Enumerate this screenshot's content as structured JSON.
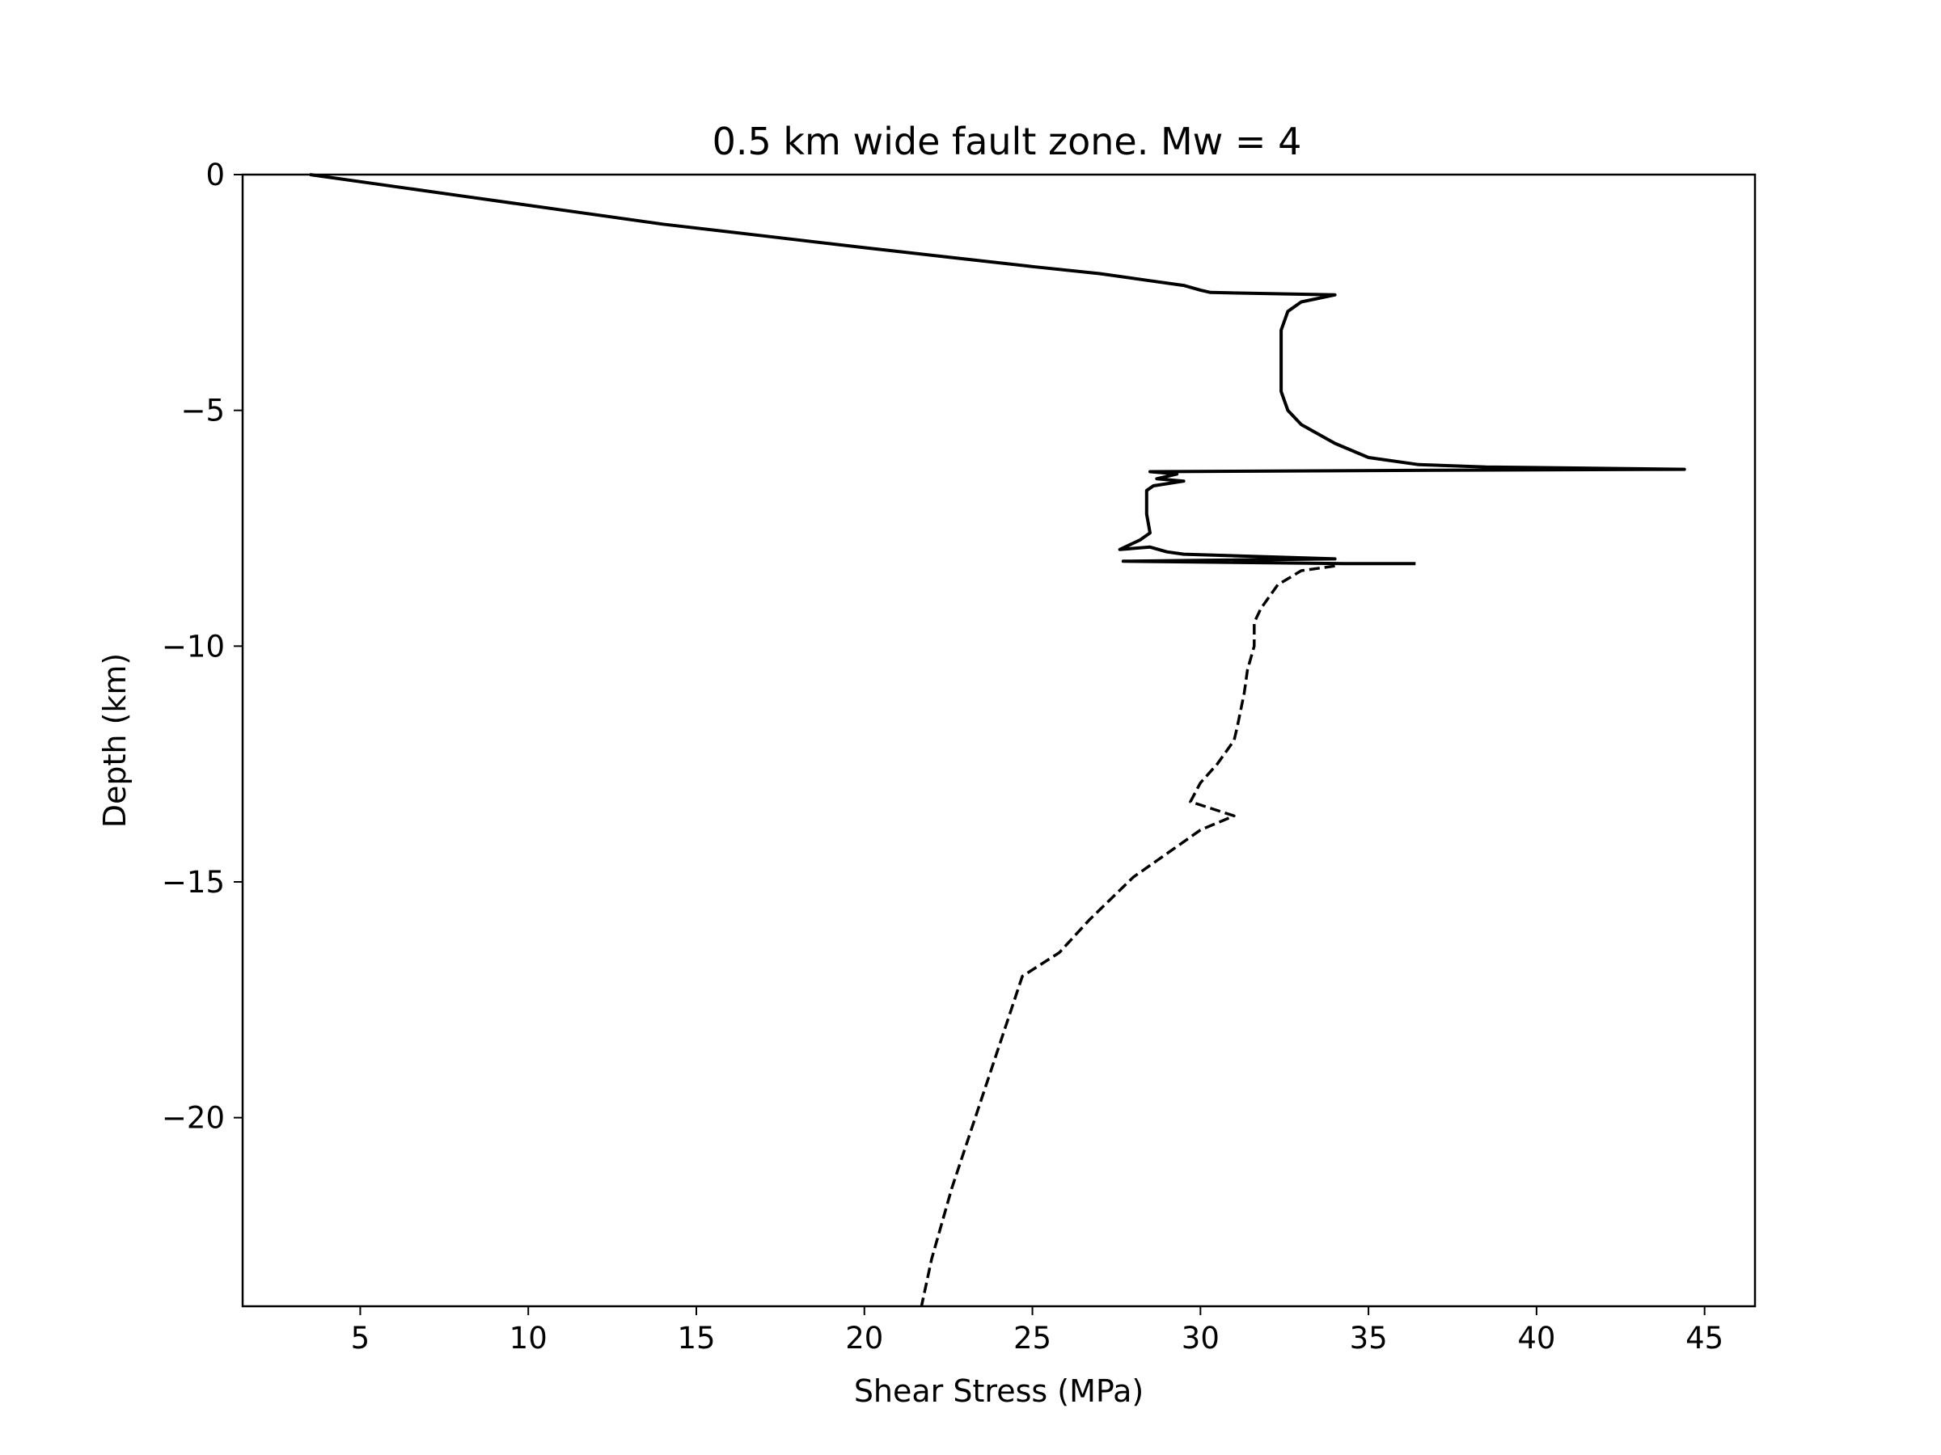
{
  "chart_data": {
    "type": "line",
    "title": "0.5 km wide fault zone. Mw = 4",
    "xlabel": "Shear Stress (MPa)",
    "ylabel": "Depth (km)",
    "xlim": [
      1.5,
      46.5
    ],
    "ylim": [
      -24,
      0
    ],
    "xticks": [
      {
        "value": 5,
        "label": "5"
      },
      {
        "value": 10,
        "label": "10"
      },
      {
        "value": 15,
        "label": "15"
      },
      {
        "value": 20,
        "label": "20"
      },
      {
        "value": 25,
        "label": "25"
      },
      {
        "value": 30,
        "label": "30"
      },
      {
        "value": 35,
        "label": "35"
      },
      {
        "value": 40,
        "label": "40"
      },
      {
        "value": 45,
        "label": "45"
      }
    ],
    "yticks": [
      {
        "value": 0,
        "label": "0"
      },
      {
        "value": -5,
        "label": "−5"
      },
      {
        "value": -10,
        "label": "−10"
      },
      {
        "value": -15,
        "label": "−15"
      },
      {
        "value": -20,
        "label": "−20"
      }
    ],
    "grid": false,
    "series": [
      {
        "style": "solid",
        "color": "#000000",
        "points": [
          [
            3.5,
            0
          ],
          [
            5.5,
            -0.2
          ],
          [
            8,
            -0.45
          ],
          [
            11,
            -0.75
          ],
          [
            14,
            -1.05
          ],
          [
            17,
            -1.3
          ],
          [
            20,
            -1.55
          ],
          [
            22.5,
            -1.75
          ],
          [
            25,
            -1.95
          ],
          [
            27,
            -2.1
          ],
          [
            28.5,
            -2.25
          ],
          [
            29.5,
            -2.35
          ],
          [
            30,
            -2.45
          ],
          [
            30.3,
            -2.5
          ],
          [
            34,
            -2.55
          ],
          [
            33,
            -2.7
          ],
          [
            32.6,
            -2.9
          ],
          [
            32.4,
            -3.3
          ],
          [
            32.4,
            -4
          ],
          [
            32.4,
            -4.6
          ],
          [
            32.6,
            -5.0
          ],
          [
            33.0,
            -5.3
          ],
          [
            34.0,
            -5.7
          ],
          [
            35.0,
            -6.0
          ],
          [
            36.5,
            -6.15
          ],
          [
            38.5,
            -6.2
          ],
          [
            44.4,
            -6.25
          ],
          [
            37.0,
            -6.27
          ],
          [
            28.5,
            -6.3
          ],
          [
            29.3,
            -6.35
          ],
          [
            28.7,
            -6.45
          ],
          [
            29.5,
            -6.5
          ],
          [
            28.6,
            -6.6
          ],
          [
            28.4,
            -6.7
          ],
          [
            28.4,
            -7.2
          ],
          [
            28.5,
            -7.6
          ],
          [
            28.2,
            -7.75
          ],
          [
            27.6,
            -7.95
          ],
          [
            28.5,
            -7.9
          ],
          [
            29.0,
            -8.0
          ],
          [
            29.5,
            -8.05
          ],
          [
            34.0,
            -8.15
          ],
          [
            27.7,
            -8.2
          ],
          [
            34.3,
            -8.25
          ],
          [
            36.4,
            -8.25
          ]
        ]
      },
      {
        "style": "dashed",
        "color": "#000000",
        "points": [
          [
            34.0,
            -8.3
          ],
          [
            33.0,
            -8.4
          ],
          [
            32.3,
            -8.7
          ],
          [
            31.8,
            -9.2
          ],
          [
            31.6,
            -9.5
          ],
          [
            31.6,
            -10.0
          ],
          [
            31.4,
            -10.5
          ],
          [
            31.3,
            -11.0
          ],
          [
            31.1,
            -11.7
          ],
          [
            31.0,
            -12.0
          ],
          [
            30.5,
            -12.5
          ],
          [
            30.0,
            -12.9
          ],
          [
            29.7,
            -13.3
          ],
          [
            31.0,
            -13.6
          ],
          [
            30.0,
            -13.9
          ],
          [
            29.2,
            -14.3
          ],
          [
            28.0,
            -14.9
          ],
          [
            26.7,
            -15.8
          ],
          [
            25.8,
            -16.5
          ],
          [
            24.7,
            -17.0
          ],
          [
            24.0,
            -18.5
          ],
          [
            23.3,
            -20.0
          ],
          [
            22.6,
            -21.5
          ],
          [
            22.0,
            -23.0
          ],
          [
            21.7,
            -24.0
          ]
        ]
      }
    ]
  }
}
